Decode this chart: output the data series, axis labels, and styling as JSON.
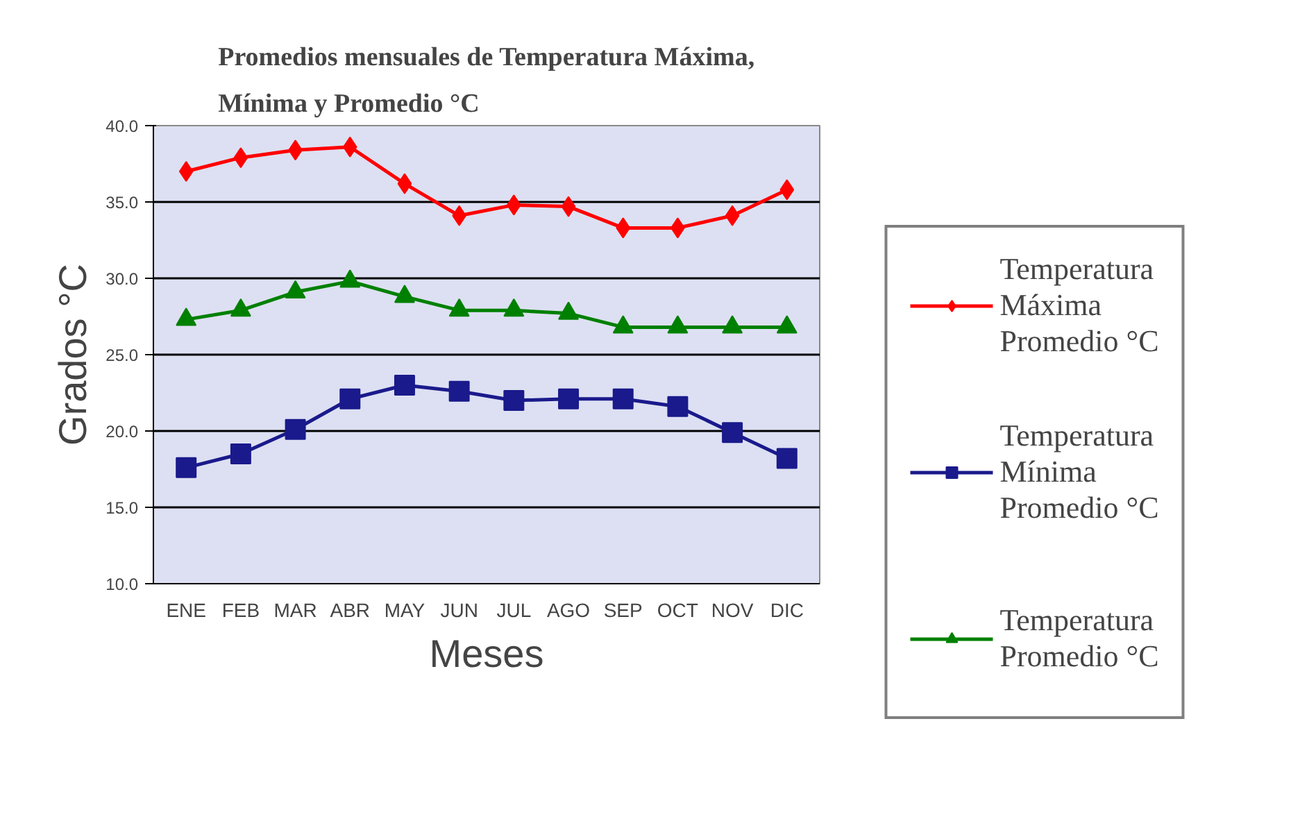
{
  "chart_data": {
    "type": "line",
    "title": "Promedios mensuales de Temperatura Máxima,\nMínima y Promedio °C",
    "xlabel": "Meses",
    "ylabel": "Grados °C",
    "categories": [
      "ENE",
      "FEB",
      "MAR",
      "ABR",
      "MAY",
      "JUN",
      "JUL",
      "AGO",
      "SEP",
      "OCT",
      "NOV",
      "DIC"
    ],
    "ylim": [
      10,
      40
    ],
    "yticks": [
      {
        "value": 10,
        "label": "10.0"
      },
      {
        "value": 15,
        "label": "15.0"
      },
      {
        "value": 20,
        "label": "20.0"
      },
      {
        "value": 25,
        "label": "25.0"
      },
      {
        "value": 30,
        "label": "30.0"
      },
      {
        "value": 35,
        "label": "35.0"
      },
      {
        "value": 40,
        "label": "40.0"
      }
    ],
    "grid": "y",
    "legend": "right",
    "series": [
      {
        "name": "Temperatura Máxima Promedio °C",
        "color": "#ff0000",
        "marker": "diamond",
        "values": [
          37.0,
          37.9,
          38.4,
          38.6,
          36.2,
          34.1,
          34.8,
          34.7,
          33.3,
          33.3,
          34.1,
          35.8
        ]
      },
      {
        "name": "Temperatura Mínima Promedio °C",
        "color": "#1a1a8c",
        "marker": "square",
        "values": [
          17.6,
          18.5,
          20.1,
          22.1,
          23.0,
          22.6,
          22.0,
          22.1,
          22.1,
          21.6,
          19.9,
          18.2
        ]
      },
      {
        "name": "Temperatura Promedio °C",
        "color": "#008000",
        "marker": "triangle",
        "values": [
          27.3,
          27.9,
          29.1,
          29.8,
          28.8,
          27.9,
          27.9,
          27.7,
          26.8,
          26.8,
          26.8,
          26.8
        ]
      }
    ]
  }
}
